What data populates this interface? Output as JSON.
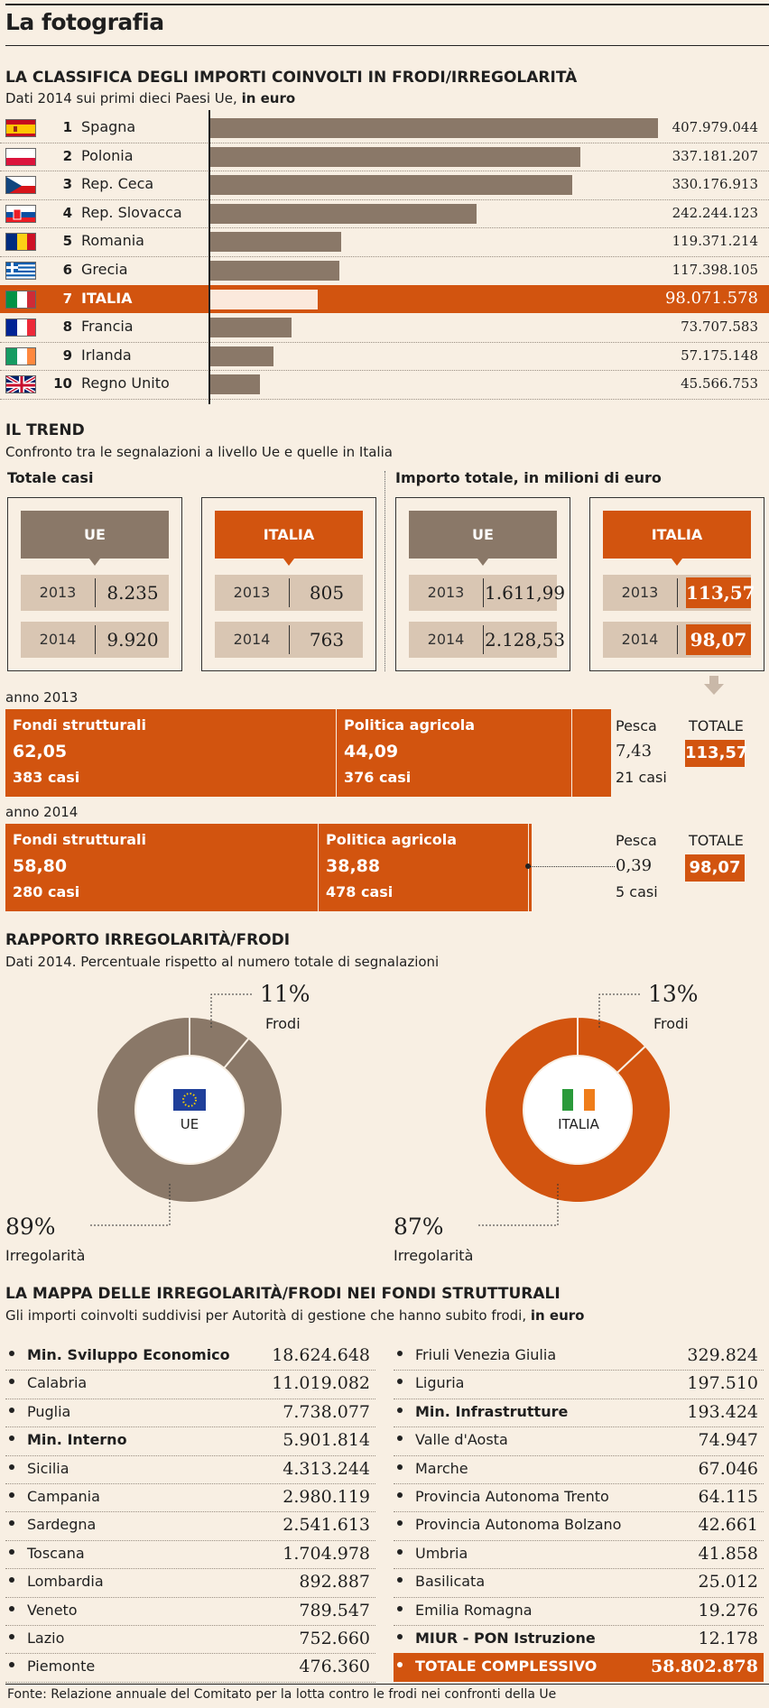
{
  "page_title": "La fotografia",
  "ranking": {
    "title": "LA CLASSIFICA DEGLI IMPORTI COINVOLTI IN FRODI/IRREGOLARITÀ",
    "subtitle_prefix": "Dati 2014 sui primi dieci Paesi Ue, ",
    "subtitle_bold": "in euro",
    "highlight_color": "#d2540f",
    "bar_color": "#8a7868"
  },
  "chart_data": [
    {
      "type": "bar",
      "title": "LA CLASSIFICA DEGLI IMPORTI COINVOLTI IN FRODI/IRREGOLARITÀ",
      "categories": [
        "Spagna",
        "Polonia",
        "Rep. Ceca",
        "Rep. Slovacca",
        "Romania",
        "Grecia",
        "ITALIA",
        "Francia",
        "Irlanda",
        "Regno Unito"
      ],
      "ranks": [
        1,
        2,
        3,
        4,
        5,
        6,
        7,
        8,
        9,
        10
      ],
      "values": [
        407979044,
        337181207,
        330176913,
        242244123,
        119371214,
        117398105,
        98071578,
        73707583,
        57175148,
        45566753
      ],
      "labels": [
        "407.979.044",
        "337.181.207",
        "330.176.913",
        "242.244.123",
        "119.371.214",
        "117.398.105",
        "98.071.578",
        "73.707.583",
        "57.175.148",
        "45.566.753"
      ],
      "flags": [
        "spain-flag",
        "poland-flag",
        "czech-flag",
        "slovakia-flag",
        "romania-flag",
        "greece-flag",
        "italy-flag",
        "france-flag",
        "ireland-flag",
        "uk-flag"
      ],
      "highlight": "ITALIA",
      "unit": "euro"
    },
    {
      "type": "pie",
      "title": "UE",
      "slices": [
        {
          "label": "Frodi",
          "value": 11,
          "text": "11%"
        },
        {
          "label": "Irregolarità",
          "value": 89,
          "text": "89%"
        }
      ],
      "color": "#8a7868"
    },
    {
      "type": "pie",
      "title": "ITALIA",
      "slices": [
        {
          "label": "Frodi",
          "value": 13,
          "text": "13%"
        },
        {
          "label": "Irregolarità",
          "value": 87,
          "text": "87%"
        }
      ],
      "color": "#d2540f"
    },
    {
      "type": "bar",
      "title": "anno 2013",
      "categories": [
        "Fondi strutturali",
        "Politica agricola",
        "Pesca"
      ],
      "values": [
        62.05,
        44.09,
        7.43
      ],
      "total": 113.57
    },
    {
      "type": "bar",
      "title": "anno 2014",
      "categories": [
        "Fondi strutturali",
        "Politica agricola",
        "Pesca"
      ],
      "values": [
        58.8,
        38.88,
        0.39
      ],
      "total": 98.07
    }
  ],
  "trend": {
    "title": "IL TREND",
    "subtitle": "Confronto tra le segnalazioni a livello Ue e quelle in Italia",
    "left_label": "Totale casi",
    "right_label": "Importo totale, in milioni di euro",
    "boxes": [
      {
        "head": "UE",
        "rows": [
          {
            "year": "2013",
            "value": "8.235"
          },
          {
            "year": "2014",
            "value": "9.920"
          }
        ]
      },
      {
        "head": "ITALIA",
        "rows": [
          {
            "year": "2013",
            "value": "805"
          },
          {
            "year": "2014",
            "value": "763"
          }
        ]
      },
      {
        "head": "UE",
        "rows": [
          {
            "year": "2013",
            "value": "1.611,99"
          },
          {
            "year": "2014",
            "value": "2.128,53"
          }
        ]
      },
      {
        "head": "ITALIA",
        "rows": [
          {
            "year": "2013",
            "value": "113,57"
          },
          {
            "year": "2014",
            "value": "98,07"
          }
        ]
      }
    ]
  },
  "fondi": {
    "y2013": {
      "label": "anno 2013",
      "strutt_t": "Fondi strutturali",
      "strutt_v": "62,05",
      "strutt_c": "383 casi",
      "agri_t": "Politica agricola",
      "agri_v": "44,09",
      "agri_c": "376 casi",
      "pesca_t": "Pesca",
      "pesca_v": "7,43",
      "pesca_c": "21 casi",
      "tot_t": "TOTALE",
      "tot_v": "113,57"
    },
    "y2014": {
      "label": "anno 2014",
      "strutt_t": "Fondi strutturali",
      "strutt_v": "58,80",
      "strutt_c": "280 casi",
      "agri_t": "Politica agricola",
      "agri_v": "38,88",
      "agri_c": "478 casi",
      "pesca_t": "Pesca",
      "pesca_v": "0,39",
      "pesca_c": "5 casi",
      "tot_t": "TOTALE",
      "tot_v": "98,07"
    }
  },
  "rapporto": {
    "title": "RAPPORTO IRREGOLARITÀ/FRODI",
    "subtitle": "Dati 2014. Percentuale rispetto al numero totale di segnalazioni",
    "ue": {
      "center": "UE",
      "frodi_pct": "11%",
      "frodi_label": "Frodi",
      "irr_pct": "89%",
      "irr_label": "Irregolarità"
    },
    "it": {
      "center": "ITALIA",
      "frodi_pct": "13%",
      "frodi_label": "Frodi",
      "irr_pct": "87%",
      "irr_label": "Irregolarità"
    }
  },
  "mappa": {
    "title": "LA MAPPA DELLE IRREGOLARITÀ/FRODI NEI FONDI STRUTTURALI",
    "subtitle_prefix": "Gli importi coinvolti suddivisi per Autorità di gestione che hanno subito frodi, ",
    "subtitle_bold": "in euro",
    "left": [
      {
        "name": "Min. Sviluppo Economico",
        "value": "18.624.648",
        "bold": true
      },
      {
        "name": "Calabria",
        "value": "11.019.082",
        "bold": false
      },
      {
        "name": "Puglia",
        "value": "7.738.077",
        "bold": false
      },
      {
        "name": "Min. Interno",
        "value": "5.901.814",
        "bold": true
      },
      {
        "name": "Sicilia",
        "value": "4.313.244",
        "bold": false
      },
      {
        "name": "Campania",
        "value": "2.980.119",
        "bold": false
      },
      {
        "name": "Sardegna",
        "value": "2.541.613",
        "bold": false
      },
      {
        "name": "Toscana",
        "value": "1.704.978",
        "bold": false
      },
      {
        "name": "Lombardia",
        "value": "892.887",
        "bold": false
      },
      {
        "name": "Veneto",
        "value": "789.547",
        "bold": false
      },
      {
        "name": "Lazio",
        "value": "752.660",
        "bold": false
      },
      {
        "name": "Piemonte",
        "value": "476.360",
        "bold": false
      }
    ],
    "right": [
      {
        "name": "Friuli Venezia Giulia",
        "value": "329.824",
        "bold": false
      },
      {
        "name": "Liguria",
        "value": "197.510",
        "bold": false
      },
      {
        "name": "Min. Infrastrutture",
        "value": "193.424",
        "bold": true
      },
      {
        "name": "Valle d'Aosta",
        "value": "74.947",
        "bold": false
      },
      {
        "name": "Marche",
        "value": "67.046",
        "bold": false
      },
      {
        "name": "Provincia Autonoma Trento",
        "value": "64.115",
        "bold": false
      },
      {
        "name": "Provincia Autonoma Bolzano",
        "value": "42.661",
        "bold": false
      },
      {
        "name": "Umbria",
        "value": "41.858",
        "bold": false
      },
      {
        "name": "Basilicata",
        "value": "25.012",
        "bold": false
      },
      {
        "name": "Emilia Romagna",
        "value": "19.276",
        "bold": false
      },
      {
        "name": "MIUR - PON Istruzione",
        "value": "12.178",
        "bold": true
      }
    ],
    "total": {
      "name": "TOTALE COMPLESSIVO",
      "value": "58.802.878"
    }
  },
  "source": "Fonte: Relazione annuale del Comitato per la lotta contro le frodi nei confronti della Ue"
}
